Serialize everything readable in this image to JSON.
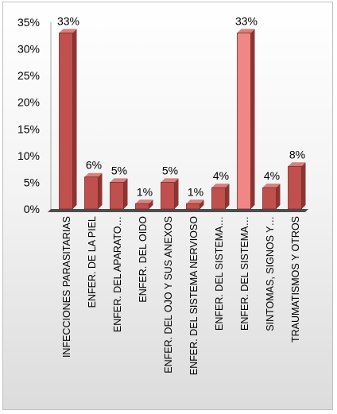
{
  "chart_data": {
    "type": "bar",
    "categories": [
      "INFECCIONES PARASITARIAS",
      "ENFER. DE LA PIEL",
      "ENFER. DEL APARATO…",
      "ENFER. DEL OIDO",
      "ENFER. DEL OJO Y SUS ANEXOS",
      "ENFER. DEL SISTEMA NERVIOSO",
      "ENFER. DEL SISTEMA…",
      "ENFER. DEL SISTEMA…",
      "SINTOMAS, SIGNOS Y…",
      "TRAUMATISMOS Y OTROS"
    ],
    "values": [
      33,
      6,
      5,
      1,
      5,
      1,
      4,
      33,
      4,
      8
    ],
    "data_labels": [
      "33%",
      "6%",
      "5%",
      "1%",
      "5%",
      "1%",
      "4%",
      "33%",
      "4%",
      "8%"
    ],
    "highlight_index": 7,
    "y_ticks": [
      "0%",
      "5%",
      "10%",
      "15%",
      "20%",
      "25%",
      "30%",
      "35%"
    ],
    "ylim": [
      0,
      35
    ],
    "grid": false,
    "legend": "none",
    "colors": {
      "bar": "#c0504d",
      "bar_highlight": "#f08784",
      "bar_side": "#8c3532",
      "bar_top": "#d8807d",
      "floor": "#4d4d4d"
    }
  }
}
